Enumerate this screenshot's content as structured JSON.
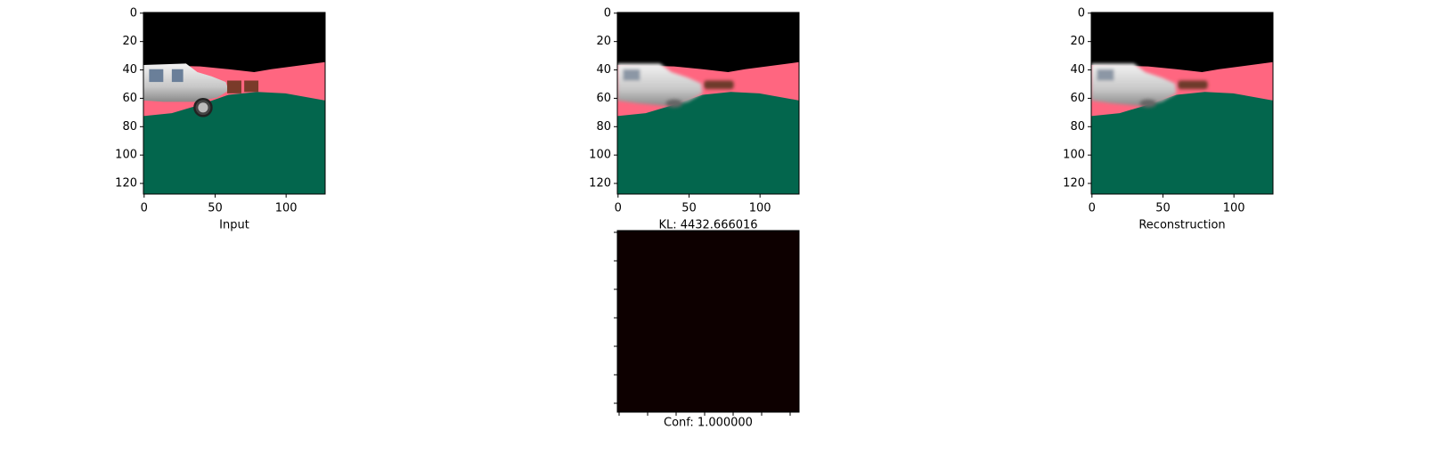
{
  "chart_data": [
    {
      "type": "image",
      "xlabel": "Input",
      "xlim": [
        -0.5,
        127.5
      ],
      "ylim": [
        127.5,
        -0.5
      ],
      "xticks": [
        0,
        50,
        100
      ],
      "yticks": [
        0,
        20,
        40,
        60,
        80,
        100,
        120
      ]
    },
    {
      "type": "image",
      "xlim": [
        -0.5,
        127.5
      ],
      "ylim": [
        127.5,
        -0.5
      ],
      "xticks": [
        0,
        50,
        100
      ],
      "yticks": [
        0,
        20,
        40,
        60,
        80,
        100,
        120
      ]
    },
    {
      "type": "image",
      "xlabel": "Reconstruction",
      "xlim": [
        -0.5,
        127.5
      ],
      "ylim": [
        127.5,
        -0.5
      ],
      "xticks": [
        0,
        50,
        100
      ],
      "yticks": [
        0,
        20,
        40,
        60,
        80,
        100,
        120
      ]
    },
    {
      "type": "heatmap",
      "title": "KL: 4432.666016",
      "xlabel": "Conf: 1.000000"
    }
  ]
}
